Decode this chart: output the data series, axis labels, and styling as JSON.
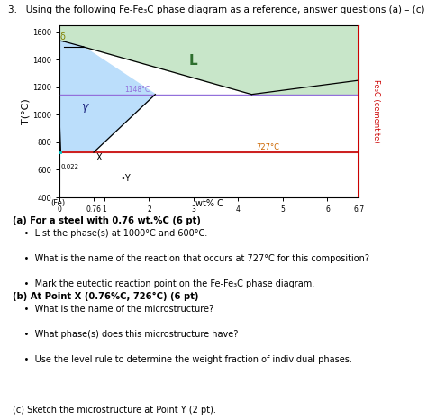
{
  "title": "3.   Using the following Fe-Fe₃C phase diagram as a reference, answer questions (a) – (c)",
  "diagram_ylabel": "T(°C)",
  "xlabel": "wt% C",
  "xlabel2": "(Fe)",
  "ylabel_right": "Fe₃C (cementite)",
  "x_ticks": [
    0,
    0.76,
    1,
    2,
    3,
    4,
    5,
    6,
    6.7
  ],
  "x_tick_labels": [
    "0",
    "0.76",
    "1",
    "2",
    "3",
    "4",
    "5",
    "6",
    "6.7"
  ],
  "y_ticks": [
    400,
    600,
    800,
    1000,
    1200,
    1400,
    1600
  ],
  "xlim": [
    0,
    6.7
  ],
  "ylim": [
    400,
    1650
  ],
  "eutectic_T": 1148,
  "eutectoid_T": 727,
  "label_L": "L",
  "label_gamma": "γ",
  "label_delta": "δ",
  "label_X": "X",
  "label_Y": "•Y",
  "color_L_region": "#c8e6c9",
  "color_gamma_region": "#bbdefb",
  "color_eutectic_line": "#9370db",
  "color_eutectoid_line": "#cd2222",
  "color_right_axis": "#cc0000",
  "color_cyan": "#00cccc",
  "annot_eutectic": "1148°C",
  "annot_eutectoid": "727°C",
  "annot_022": "0.022",
  "questions": [
    "(a) For a steel with 0.76 wt.%C (6 pt)",
    "List the phase(s) at 1000°C and 600°C.",
    "What is the name of the reaction that occurs at 727°C for this composition?",
    "Mark the eutectic reaction point on the Fe-Fe₃C phase diagram.",
    "(b) At Point X (0.76%C, 726°C) (6 pt)",
    "What is the name of the microstructure?",
    "What phase(s) does this microstructure have?",
    "Use the level rule to determine the weight fraction of individual phases.",
    "(c) Sketch the microstructure at Point Y (2 pt)."
  ]
}
